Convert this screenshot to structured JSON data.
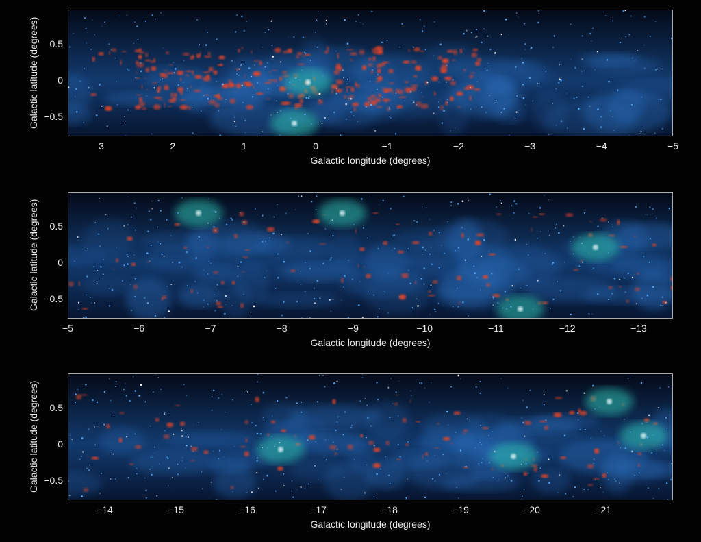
{
  "panels": [
    {
      "ylabel": "Galactic latitude (degrees)",
      "xlabel": "Galactic longitude (degrees)",
      "xlim": [
        3.47,
        -5.0
      ],
      "ylim": [
        -0.78,
        0.98
      ],
      "xticks": [
        "3",
        "2",
        "1",
        "0",
        "−1",
        "−2",
        "−3",
        "−4",
        "−5"
      ],
      "xtick_values": [
        3,
        2,
        1,
        0,
        -1,
        -2,
        -3,
        -4,
        -5
      ],
      "yticks": [
        "0.5",
        "0",
        "−0.5"
      ],
      "ytick_values": [
        0.5,
        0,
        -0.5
      ]
    },
    {
      "ylabel": "Galactic latitude (degrees)",
      "xlabel": "Galactic longitude (degrees)",
      "xlim": [
        -5.0,
        -13.48
      ],
      "ylim": [
        -0.78,
        0.98
      ],
      "xticks": [
        "−5",
        "−6",
        "−7",
        "−8",
        "−9",
        "−10",
        "−11",
        "−12",
        "−13"
      ],
      "xtick_values": [
        -5,
        -6,
        -7,
        -8,
        -9,
        -10,
        -11,
        -12,
        -13
      ],
      "yticks": [
        "0.5",
        "0",
        "−0.5"
      ],
      "ytick_values": [
        0.5,
        0,
        -0.5
      ]
    },
    {
      "ylabel": "Galactic latitude (degrees)",
      "xlabel": "Galactic longitude (degrees)",
      "xlim": [
        -13.48,
        -21.98
      ],
      "ylim": [
        -0.78,
        0.98
      ],
      "xticks": [
        "−14",
        "−15",
        "−16",
        "−17",
        "−18",
        "−19",
        "−20",
        "−21"
      ],
      "xtick_values": [
        -14,
        -15,
        -16,
        -17,
        -18,
        -19,
        -20,
        -21
      ],
      "yticks": [
        "0.5",
        "0",
        "−0.5"
      ],
      "ytick_values": [
        0.5,
        0,
        -0.5
      ]
    }
  ],
  "colors": {
    "background": "#020203",
    "dust": "#e0442a",
    "gas": "#1f5fa8",
    "ionized": "#2fc0b0",
    "frame": "#a9a9a9"
  }
}
